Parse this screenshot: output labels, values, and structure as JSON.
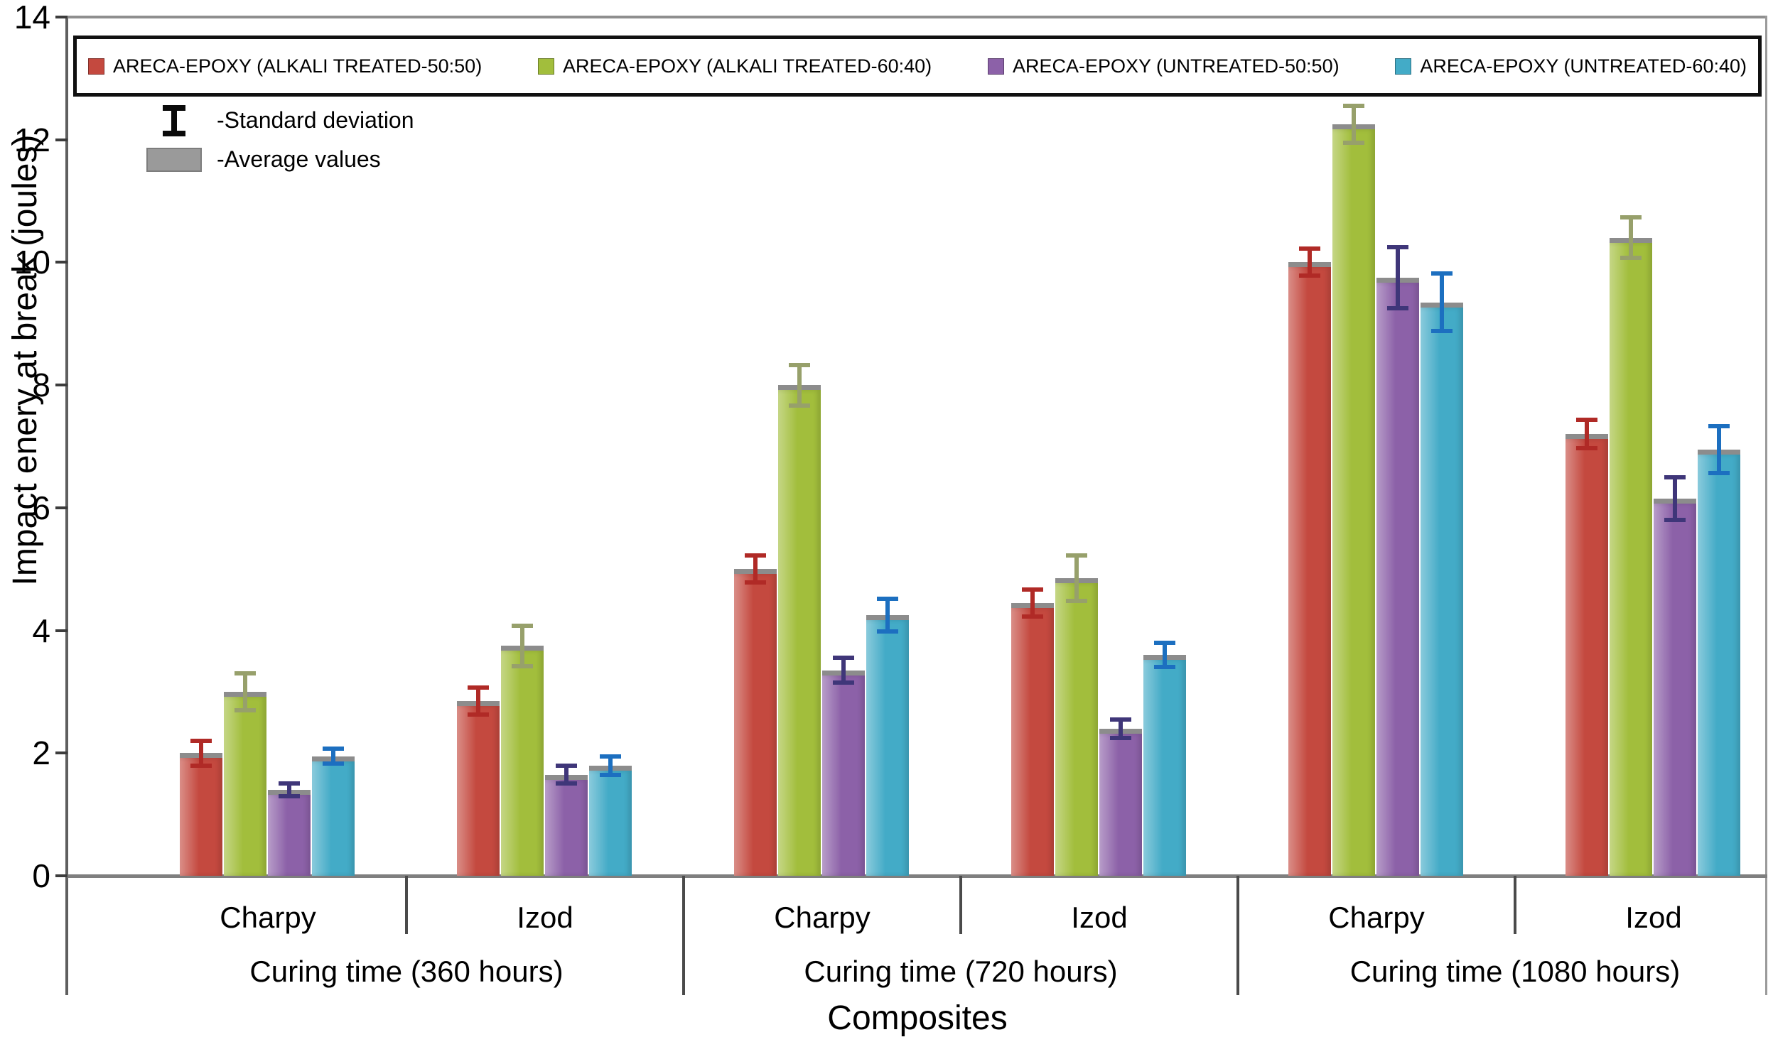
{
  "note_legend": {
    "std_label": "-Standard deviation",
    "avg_label": "-Average values",
    "avg_color": "#9a9a9a"
  },
  "chart_data": {
    "type": "bar",
    "title": "",
    "xlabel": "Composites",
    "ylabel": "Impact enery at break (joules)",
    "ylim": [
      0,
      14
    ],
    "y_ticks": [
      0,
      2,
      4,
      6,
      8,
      10,
      12,
      14
    ],
    "grid": false,
    "legend_position": "top",
    "error_bars": true,
    "categories": [
      "Charpy",
      "Izod",
      "Charpy",
      "Izod",
      "Charpy",
      "Izod"
    ],
    "category_groups": [
      {
        "label": "Curing time (360 hours)",
        "span": [
          0,
          1
        ]
      },
      {
        "label": "Curing time (720 hours)",
        "span": [
          2,
          3
        ]
      },
      {
        "label": "Curing time (1080 hours)",
        "span": [
          4,
          5
        ]
      }
    ],
    "series": [
      {
        "name": "ARECA-EPOXY (ALKALI TREATED-50:50)",
        "color": "#c4493f",
        "error_color": "#b02a26",
        "values": [
          2.0,
          2.85,
          5.0,
          4.45,
          10.0,
          7.2
        ],
        "errors": [
          0.2,
          0.22,
          0.22,
          0.22,
          0.22,
          0.23
        ]
      },
      {
        "name": "ARECA-EPOXY (ALKALI TREATED-60:40)",
        "color": "#a2be3c",
        "error_color": "#97a06b",
        "values": [
          3.0,
          3.75,
          8.0,
          4.85,
          12.25,
          10.4
        ],
        "errors": [
          0.3,
          0.33,
          0.33,
          0.37,
          0.3,
          0.33
        ]
      },
      {
        "name": "ARECA-EPOXY (UNTREATED-50:50)",
        "color": "#8c61a8",
        "error_color": "#3f3679",
        "values": [
          1.4,
          1.65,
          3.35,
          2.4,
          9.75,
          6.15
        ],
        "errors": [
          0.1,
          0.14,
          0.2,
          0.15,
          0.5,
          0.35
        ]
      },
      {
        "name": "ARECA-EPOXY (UNTREATED-60:40)",
        "color": "#43abc7",
        "error_color": "#1c6fc0",
        "values": [
          1.95,
          1.8,
          4.25,
          3.6,
          9.35,
          6.95
        ],
        "errors": [
          0.12,
          0.15,
          0.27,
          0.2,
          0.47,
          0.38
        ]
      }
    ]
  }
}
